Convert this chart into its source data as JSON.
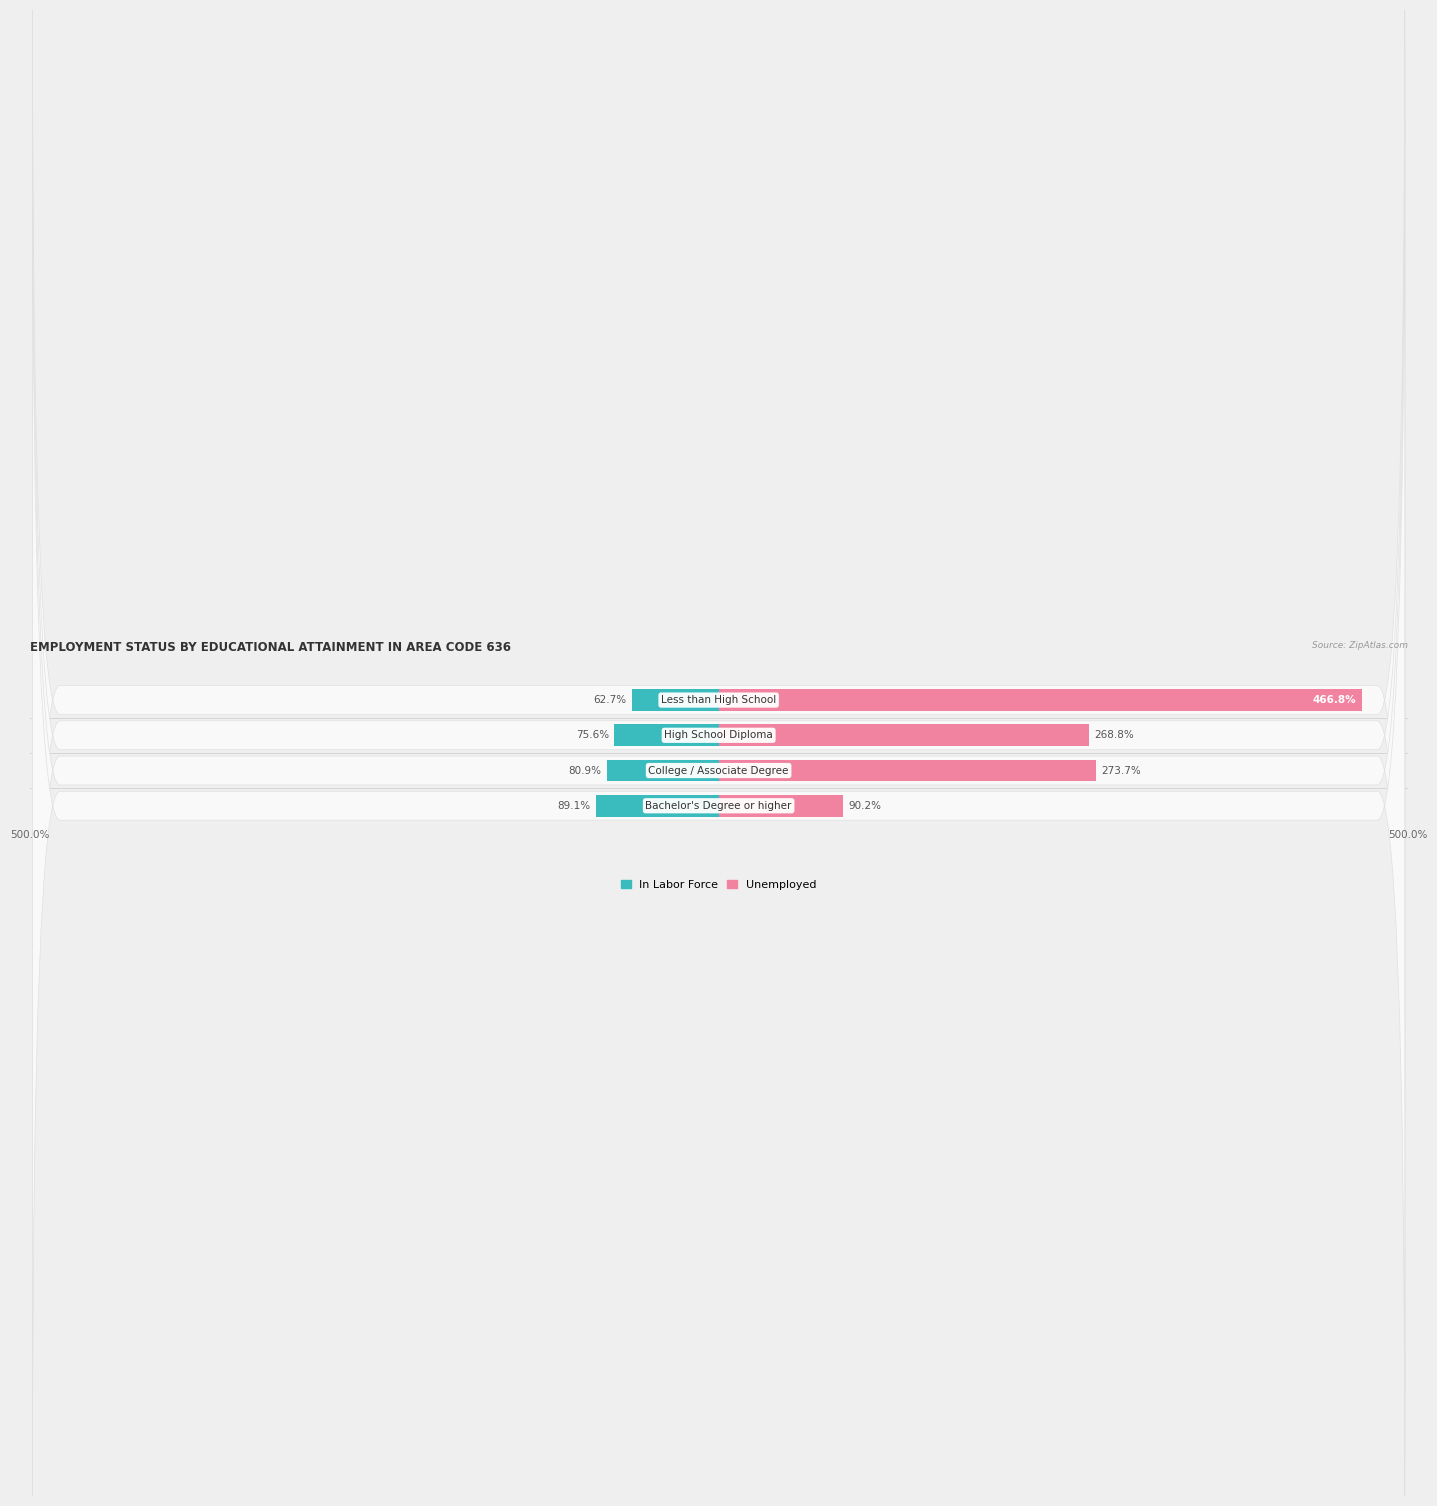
{
  "title": "EMPLOYMENT STATUS BY EDUCATIONAL ATTAINMENT IN AREA CODE 636",
  "source": "Source: ZipAtlas.com",
  "categories": [
    "Less than High School",
    "High School Diploma",
    "College / Associate Degree",
    "Bachelor's Degree or higher"
  ],
  "labor_force": [
    62.7,
    75.6,
    80.9,
    89.1
  ],
  "unemployed": [
    466.8,
    268.8,
    273.7,
    90.2
  ],
  "labor_force_color": "#3abcbf",
  "unemployed_color": "#f283a0",
  "background_color": "#efefef",
  "row_bg_color": "#f9f9f9",
  "xlim": [
    -500,
    500
  ],
  "xtick_left": -500.0,
  "xtick_right": 500.0,
  "bar_height": 0.62,
  "label_fontsize": 7.5,
  "title_fontsize": 8.5,
  "source_fontsize": 6.5,
  "legend_fontsize": 8,
  "value_fontsize": 7.5
}
